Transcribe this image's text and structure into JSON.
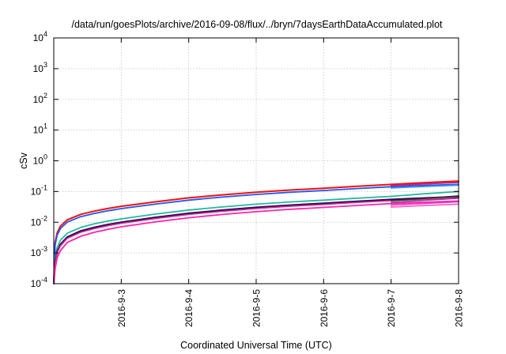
{
  "chart_data": {
    "type": "line",
    "title": "/data/run/goesPlots/archive/2016-09-08/flux/../bryn/7daysEarthDataAccumulated.plot",
    "xlabel": "Coordinated Universal Time (UTC)",
    "ylabel": "cSv",
    "yscale": "log",
    "ylim": [
      0.0001,
      10000
    ],
    "xlim": [
      "2016-9-2",
      "2016-9-8"
    ],
    "grid": true,
    "legend": "none",
    "x_ticks": [
      "2016-9-3",
      "2016-9-4",
      "2016-9-5",
      "2016-9-6",
      "2016-9-7",
      "2016-9-8"
    ],
    "y_ticks": [
      {
        "base": "10",
        "exp": "-4",
        "value": 0.0001
      },
      {
        "base": "10",
        "exp": "-3",
        "value": 0.001
      },
      {
        "base": "10",
        "exp": "-2",
        "value": 0.01
      },
      {
        "base": "10",
        "exp": "-1",
        "value": 0.1
      },
      {
        "base": "10",
        "exp": "0",
        "value": 1
      },
      {
        "base": "10",
        "exp": "1",
        "value": 10
      },
      {
        "base": "10",
        "exp": "2",
        "value": 100
      },
      {
        "base": "10",
        "exp": "3",
        "value": 1000
      },
      {
        "base": "10",
        "exp": "4",
        "value": 10000
      }
    ],
    "x_start": "2016-9-2",
    "series": [
      {
        "color": "#ee1111",
        "width": 2.0,
        "points": [
          [
            "2016-9-2",
            0.0001
          ],
          [
            "2016-9-2.02",
            0.0022
          ],
          [
            "2016-9-2.05",
            0.0045
          ],
          [
            "2016-9-2.1",
            0.0075
          ],
          [
            "2016-9-2.2",
            0.012
          ],
          [
            "2016-9-2.4",
            0.018
          ],
          [
            "2016-9-2.6",
            0.023
          ],
          [
            "2016-9-2.8",
            0.028
          ],
          [
            "2016-9-3",
            0.033
          ],
          [
            "2016-9-3.5",
            0.046
          ],
          [
            "2016-9-4",
            0.062
          ],
          [
            "2016-9-4.5",
            0.078
          ],
          [
            "2016-9-5",
            0.095
          ],
          [
            "2016-9-5.5",
            0.112
          ],
          [
            "2016-9-6",
            0.128
          ],
          [
            "2016-9-6.5",
            0.148
          ],
          [
            "2016-9-7",
            0.17
          ],
          [
            "2016-9-7.5",
            0.195
          ],
          [
            "2016-9-8",
            0.22
          ]
        ]
      },
      {
        "color": "#2255ee",
        "width": 1.8,
        "points": [
          [
            "2016-9-2",
            0.0001
          ],
          [
            "2016-9-2.02",
            0.0018
          ],
          [
            "2016-9-2.05",
            0.0038
          ],
          [
            "2016-9-2.1",
            0.0063
          ],
          [
            "2016-9-2.2",
            0.0101
          ],
          [
            "2016-9-2.4",
            0.0152
          ],
          [
            "2016-9-2.6",
            0.0194
          ],
          [
            "2016-9-2.8",
            0.0236
          ],
          [
            "2016-9-3",
            0.0278
          ],
          [
            "2016-9-3.5",
            0.0388
          ],
          [
            "2016-9-4",
            0.0523
          ],
          [
            "2016-9-4.5",
            0.0658
          ],
          [
            "2016-9-5",
            0.0801
          ],
          [
            "2016-9-5.5",
            0.0945
          ],
          [
            "2016-9-6",
            0.108
          ],
          [
            "2016-9-6.5",
            0.125
          ],
          [
            "2016-9-7",
            0.143
          ],
          [
            "2016-9-7.5",
            0.158
          ],
          [
            "2016-9-8",
            0.17
          ]
        ]
      },
      {
        "color": "#22bb99",
        "width": 1.8,
        "points": [
          [
            "2016-9-2",
            0.0001
          ],
          [
            "2016-9-2.02",
            0.0007
          ],
          [
            "2016-9-2.05",
            0.0015
          ],
          [
            "2016-9-2.1",
            0.0026
          ],
          [
            "2016-9-2.2",
            0.0044
          ],
          [
            "2016-9-2.4",
            0.0068
          ],
          [
            "2016-9-2.6",
            0.0089
          ],
          [
            "2016-9-2.8",
            0.0109
          ],
          [
            "2016-9-3",
            0.0129
          ],
          [
            "2016-9-3.5",
            0.0183
          ],
          [
            "2016-9-4",
            0.0249
          ],
          [
            "2016-9-4.5",
            0.0315
          ],
          [
            "2016-9-5",
            0.0386
          ],
          [
            "2016-9-5.5",
            0.0456
          ],
          [
            "2016-9-6",
            0.0523
          ],
          [
            "2016-9-6.5",
            0.0607
          ],
          [
            "2016-9-7",
            0.0697
          ],
          [
            "2016-9-7.5",
            0.0847
          ],
          [
            "2016-9-8",
            0.1
          ]
        ]
      },
      {
        "color": "#330066",
        "width": 2.2,
        "points": [
          [
            "2016-9-2",
            0.0001
          ],
          [
            "2016-9-2.02",
            0.0005
          ],
          [
            "2016-9-2.05",
            0.0011
          ],
          [
            "2016-9-2.1",
            0.0019
          ],
          [
            "2016-9-2.2",
            0.0033
          ],
          [
            "2016-9-2.4",
            0.0052
          ],
          [
            "2016-9-2.6",
            0.0068
          ],
          [
            "2016-9-2.8",
            0.0084
          ],
          [
            "2016-9-3",
            0.01
          ],
          [
            "2016-9-3.5",
            0.0143
          ],
          [
            "2016-9-4",
            0.0195
          ],
          [
            "2016-9-4.5",
            0.0247
          ],
          [
            "2016-9-5",
            0.0303
          ],
          [
            "2016-9-5.5",
            0.0359
          ],
          [
            "2016-9-6",
            0.0412
          ],
          [
            "2016-9-6.5",
            0.0479
          ],
          [
            "2016-9-7",
            0.055
          ],
          [
            "2016-9-7.5",
            0.0615
          ],
          [
            "2016-9-8",
            0.068
          ]
        ]
      },
      {
        "color": "#cc3388",
        "width": 1.6,
        "points": [
          [
            "2016-9-2",
            0.0001
          ],
          [
            "2016-9-2.02",
            0.00045
          ],
          [
            "2016-9-2.05",
            0.001
          ],
          [
            "2016-9-2.1",
            0.0017
          ],
          [
            "2016-9-2.2",
            0.003
          ],
          [
            "2016-9-2.4",
            0.0047
          ],
          [
            "2016-9-2.6",
            0.0062
          ],
          [
            "2016-9-2.8",
            0.0077
          ],
          [
            "2016-9-3",
            0.0092
          ],
          [
            "2016-9-3.5",
            0.0131
          ],
          [
            "2016-9-4",
            0.0179
          ],
          [
            "2016-9-4.5",
            0.0227
          ],
          [
            "2016-9-5",
            0.0279
          ],
          [
            "2016-9-5.5",
            0.033
          ],
          [
            "2016-9-6",
            0.0379
          ],
          [
            "2016-9-6.5",
            0.0441
          ],
          [
            "2016-9-7",
            0.0506
          ],
          [
            "2016-9-7.5",
            0.0568
          ],
          [
            "2016-9-8",
            0.063
          ]
        ]
      },
      {
        "color": "#ff22aa",
        "width": 1.8,
        "points": [
          [
            "2016-9-2",
            0.0001
          ],
          [
            "2016-9-2.02",
            0.0003
          ],
          [
            "2016-9-2.05",
            0.0007
          ],
          [
            "2016-9-2.1",
            0.0012
          ],
          [
            "2016-9-2.2",
            0.0022
          ],
          [
            "2016-9-2.4",
            0.0035
          ],
          [
            "2016-9-2.6",
            0.0047
          ],
          [
            "2016-9-2.8",
            0.0059
          ],
          [
            "2016-9-3",
            0.0071
          ],
          [
            "2016-9-3.5",
            0.0102
          ],
          [
            "2016-9-4",
            0.014
          ],
          [
            "2016-9-4.5",
            0.0179
          ],
          [
            "2016-9-5",
            0.0221
          ],
          [
            "2016-9-5.5",
            0.0263
          ],
          [
            "2016-9-6",
            0.0303
          ],
          [
            "2016-9-6.5",
            0.0353
          ],
          [
            "2016-9-7",
            0.0406
          ],
          [
            "2016-9-7.5",
            0.0448
          ],
          [
            "2016-9-8",
            0.049
          ]
        ]
      },
      {
        "color": "#dd2222",
        "width": 1.6,
        "points": [
          [
            "2016-9-7",
            0.158
          ],
          [
            "2016-9-7.5",
            0.183
          ],
          [
            "2016-9-8",
            0.208
          ]
        ]
      },
      {
        "color": "#bb2299",
        "width": 1.6,
        "points": [
          [
            "2016-9-7",
            0.155
          ],
          [
            "2016-9-7.5",
            0.176
          ],
          [
            "2016-9-8",
            0.196
          ]
        ]
      },
      {
        "color": "#3399ee",
        "width": 1.6,
        "points": [
          [
            "2016-9-7",
            0.13
          ],
          [
            "2016-9-7.5",
            0.145
          ],
          [
            "2016-9-8",
            0.16
          ]
        ]
      },
      {
        "color": "#333333",
        "width": 1.6,
        "points": [
          [
            "2016-9-7",
            0.05
          ],
          [
            "2016-9-7.5",
            0.06
          ],
          [
            "2016-9-8",
            0.072
          ]
        ]
      },
      {
        "color": "#884488",
        "width": 1.6,
        "points": [
          [
            "2016-9-7",
            0.044
          ],
          [
            "2016-9-7.5",
            0.052
          ],
          [
            "2016-9-8",
            0.06
          ]
        ]
      },
      {
        "color": "#ee33cc",
        "width": 1.6,
        "points": [
          [
            "2016-9-7",
            0.036
          ],
          [
            "2016-9-7.5",
            0.041
          ],
          [
            "2016-9-8",
            0.046
          ]
        ]
      },
      {
        "color": "#ff55bb",
        "width": 1.6,
        "points": [
          [
            "2016-9-7",
            0.031
          ],
          [
            "2016-9-7.5",
            0.035
          ],
          [
            "2016-9-8",
            0.039
          ]
        ]
      }
    ]
  }
}
